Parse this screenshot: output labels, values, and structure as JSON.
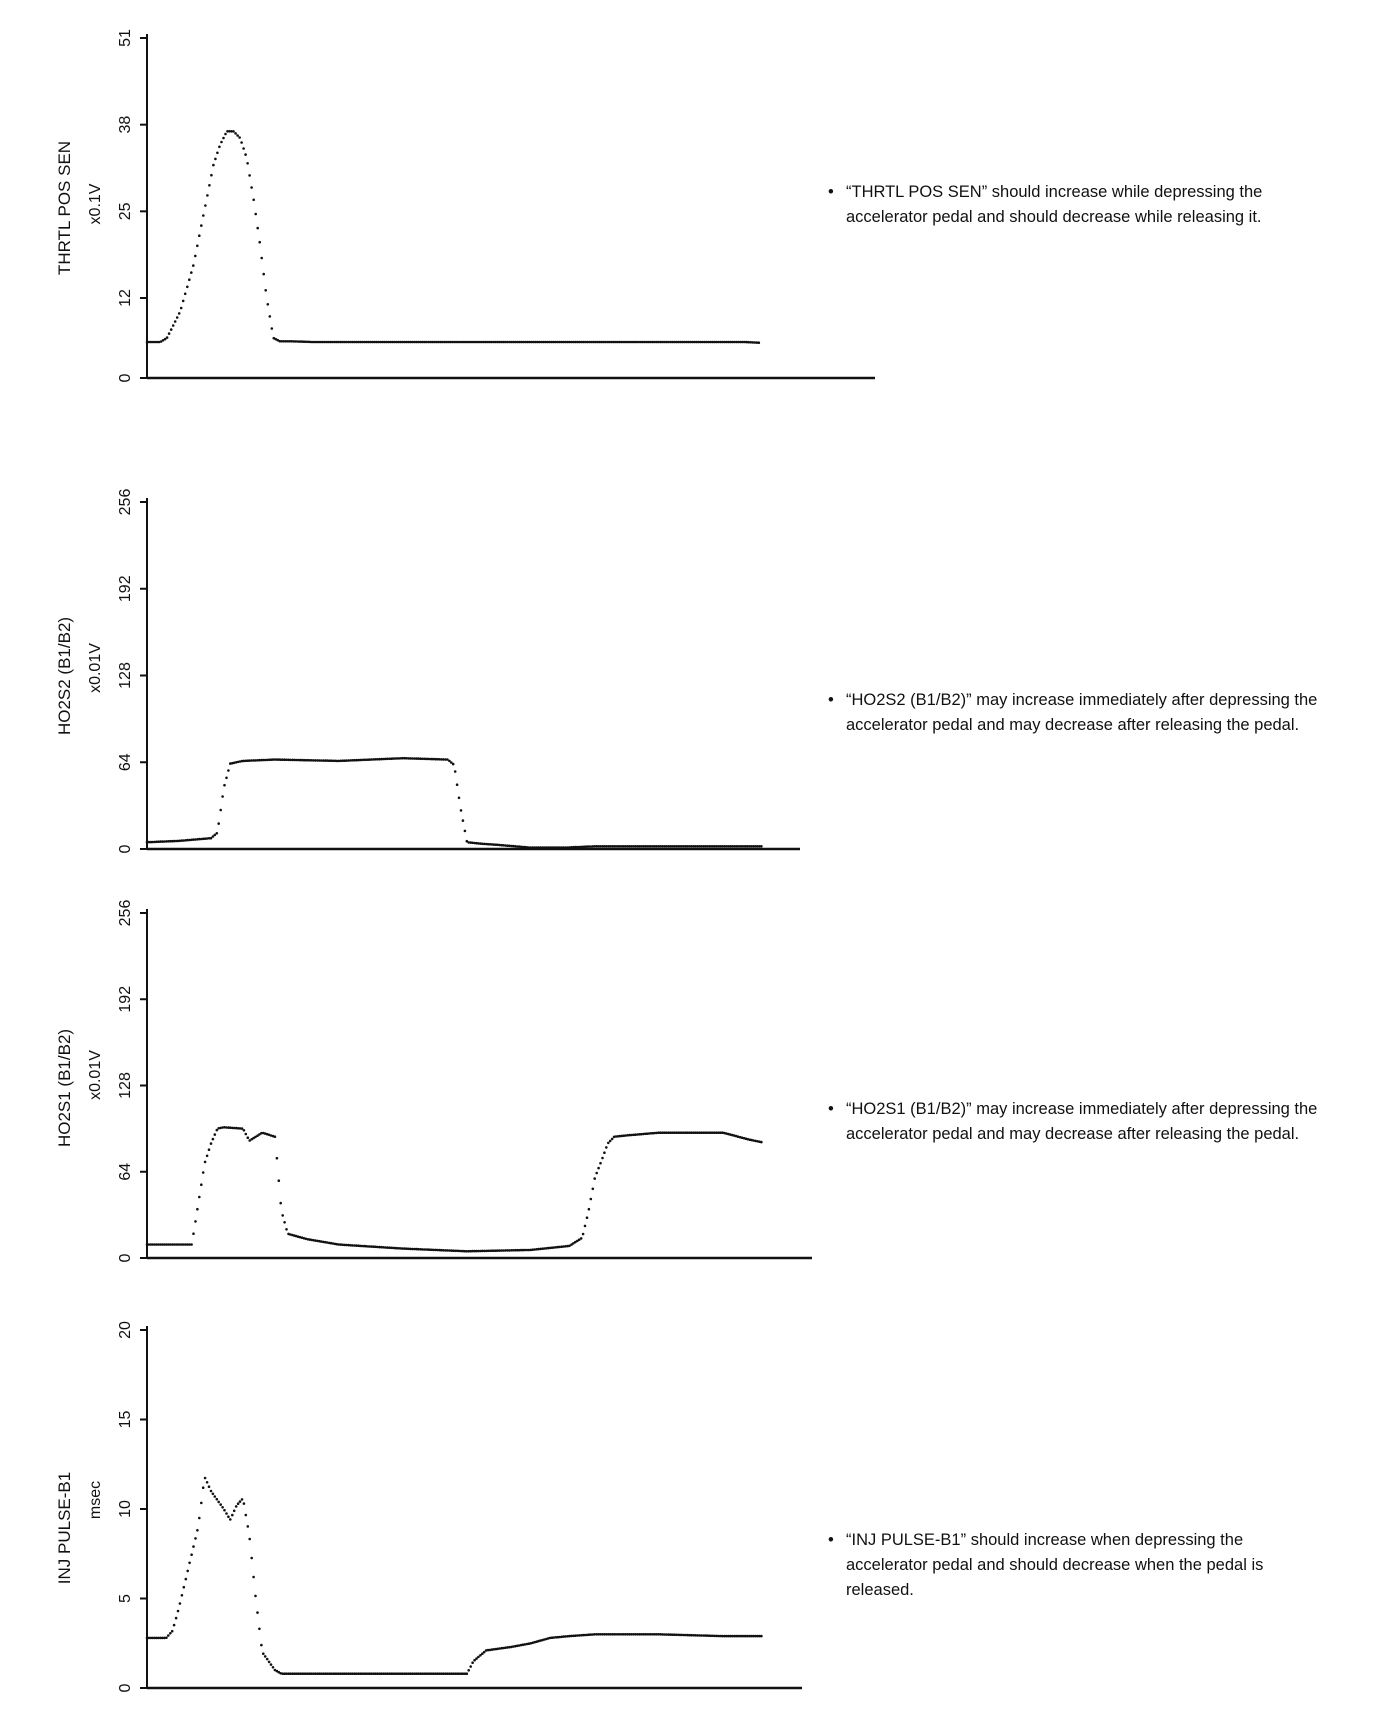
{
  "chart_data": [
    {
      "type": "line",
      "ylabel": "THRTL POS SEN",
      "unit": "x0.1V",
      "yticks": [
        0,
        12,
        25,
        38,
        51
      ],
      "ylim": [
        0,
        51
      ],
      "xlim": [
        0,
        100
      ],
      "x": [
        0,
        2,
        3,
        5,
        7,
        8,
        9,
        10,
        11,
        12,
        13,
        14,
        15,
        16,
        17,
        18,
        19,
        20,
        21,
        22,
        25,
        30,
        40,
        50,
        60,
        70,
        80,
        90,
        92
      ],
      "values": [
        5.4,
        5.4,
        6,
        10,
        17,
        22,
        27,
        32,
        35,
        37,
        37,
        36,
        33,
        27,
        20,
        12,
        6,
        5.5,
        5.5,
        5.5,
        5.4,
        5.4,
        5.4,
        5.4,
        5.4,
        5.4,
        5.4,
        5.4,
        5.3
      ],
      "note": "“THRTL POS SEN” should increase while depressing the accelerator pedal and should decrease while releasing it."
    },
    {
      "type": "line",
      "ylabel": "HO2S2 (B1/B2)",
      "unit": "x0.01V",
      "yticks": [
        0,
        64,
        128,
        192,
        256
      ],
      "ylim": [
        0,
        256
      ],
      "xlim": [
        0,
        100
      ],
      "x": [
        0,
        5,
        10,
        11,
        12,
        13,
        15,
        20,
        30,
        40,
        47,
        48,
        49,
        50,
        52,
        55,
        60,
        65,
        70,
        80,
        90,
        96
      ],
      "values": [
        5,
        6,
        8,
        12,
        45,
        63,
        65,
        66,
        65,
        67,
        66,
        62,
        30,
        5,
        4,
        3,
        1,
        1,
        2,
        2,
        2,
        2
      ],
      "note": "“HO2S2 (B1/B2)” may increase immediately after depressing the accelerator pedal and may decrease after releasing the pedal."
    },
    {
      "type": "line",
      "ylabel": "HO2S1 (B1/B2)",
      "unit": "x0.01V",
      "yticks": [
        0,
        64,
        128,
        192,
        256
      ],
      "ylim": [
        0,
        256
      ],
      "xlim": [
        0,
        100
      ],
      "x": [
        0,
        7,
        8,
        9,
        10,
        11,
        12,
        15,
        16,
        18,
        20,
        21,
        22,
        25,
        30,
        40,
        50,
        60,
        66,
        68,
        69,
        70,
        71,
        72,
        73,
        75,
        80,
        90,
        94,
        96
      ],
      "values": [
        10,
        10,
        40,
        70,
        85,
        96,
        97,
        96,
        87,
        93,
        90,
        35,
        18,
        14,
        10,
        7,
        5,
        6,
        9,
        15,
        35,
        60,
        72,
        85,
        90,
        91,
        93,
        93,
        88,
        86
      ],
      "note": "“HO2S1 (B1/B2)” may increase immediately after depressing the accelerator pedal and may decrease after releasing the pedal."
    },
    {
      "type": "line",
      "ylabel": "INJ PULSE-B1",
      "unit": "msec",
      "yticks": [
        0,
        5,
        10,
        15,
        20
      ],
      "ylim": [
        0,
        20
      ],
      "xlim": [
        0,
        100
      ],
      "x": [
        0,
        3,
        4,
        5,
        6,
        7,
        8,
        9,
        10,
        11,
        12,
        13,
        14,
        15,
        16,
        17,
        18,
        19,
        20,
        21,
        22,
        24,
        26,
        30,
        40,
        50,
        51,
        53,
        55,
        57,
        60,
        63,
        66,
        70,
        80,
        90,
        96
      ],
      "values": [
        2.8,
        2.8,
        3.2,
        4.5,
        6,
        7.5,
        9,
        11.8,
        11,
        10.5,
        10,
        9.4,
        10.2,
        10.6,
        8.5,
        5,
        2,
        1.5,
        1,
        0.8,
        0.8,
        0.8,
        0.8,
        0.8,
        0.8,
        0.8,
        1.5,
        2.1,
        2.2,
        2.3,
        2.5,
        2.8,
        2.9,
        3,
        3,
        2.9,
        2.9
      ],
      "note": "“INJ PULSE-B1” should increase when depressing the accelerator pedal and should decrease when the pedal is released."
    }
  ]
}
